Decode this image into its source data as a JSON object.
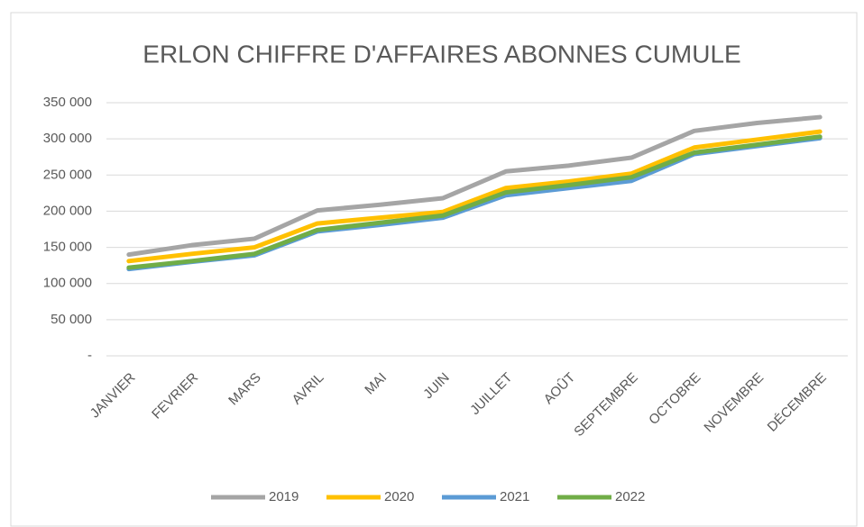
{
  "chart_data": {
    "type": "line",
    "title": "ERLON CHIFFRE D'AFFAIRES ABONNES CUMULE",
    "categories": [
      "JANVIER",
      "FEVRIER",
      "MARS",
      "AVRIL",
      "MAI",
      "JUIN",
      "JUILLET",
      "AOÛT",
      "SEPTEMBRE",
      "OCTOBRE",
      "NOVEMBRE",
      "DÉCEMBRE"
    ],
    "series": [
      {
        "name": "2019",
        "color": "#a5a5a5",
        "values": [
          140000,
          153000,
          162000,
          201000,
          209000,
          218000,
          255000,
          263000,
          274000,
          311000,
          322000,
          330000
        ]
      },
      {
        "name": "2020",
        "color": "#ffc000",
        "values": [
          131000,
          141000,
          150000,
          183000,
          191000,
          199000,
          232000,
          241000,
          252000,
          288000,
          299000,
          310000
        ]
      },
      {
        "name": "2021",
        "color": "#5b9bd5",
        "values": [
          120000,
          130000,
          139000,
          172000,
          181000,
          191000,
          222000,
          232000,
          242000,
          279000,
          290000,
          301000
        ]
      },
      {
        "name": "2022",
        "color": "#70ad47",
        "values": [
          122000,
          131000,
          141000,
          174000,
          184000,
          194000,
          226000,
          236000,
          247000,
          281000,
          292000,
          303000
        ]
      }
    ],
    "ylim": [
      0,
      350000
    ],
    "yticks": [
      {
        "value": 0,
        "label": "-"
      },
      {
        "value": 50000,
        "label": "50 000"
      },
      {
        "value": 100000,
        "label": "100 000"
      },
      {
        "value": 150000,
        "label": "150 000"
      },
      {
        "value": 200000,
        "label": "200 000"
      },
      {
        "value": 250000,
        "label": "250 000"
      },
      {
        "value": 300000,
        "label": "300 000"
      },
      {
        "value": 350000,
        "label": "350 000"
      }
    ],
    "grid": true,
    "legend": "bottom"
  }
}
